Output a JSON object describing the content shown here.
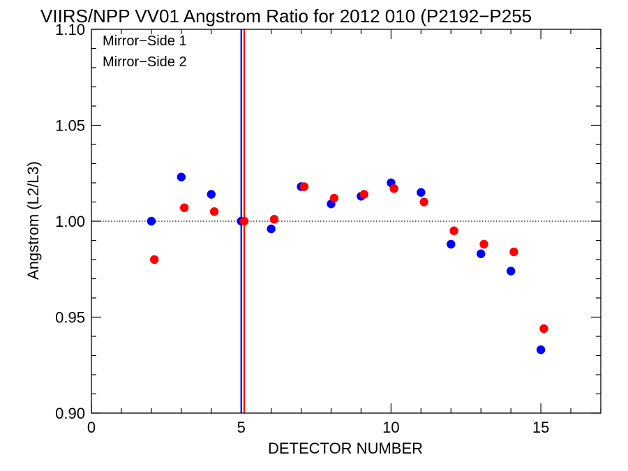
{
  "chart_data": {
    "type": "scatter",
    "title": "VIIRS/NPP VV01 Angstrom Ratio for 2012 010 (P2192−P255",
    "xlabel": "DETECTOR NUMBER",
    "ylabel": "Angstrom (L2/L3)",
    "xlim": [
      0,
      17
    ],
    "ylim": [
      0.9,
      1.1
    ],
    "x_ticks": [
      0,
      5,
      10,
      15
    ],
    "x_tick_labels": [
      "0",
      "5",
      "10",
      "15"
    ],
    "y_ticks": [
      0.9,
      0.95,
      1.0,
      1.05,
      1.1
    ],
    "y_tick_labels": [
      "0.90",
      "0.95",
      "1.00",
      "1.05",
      "1.10"
    ],
    "reference_line": {
      "y": 1.0,
      "style": "dotted"
    },
    "vertical_lines": [
      {
        "x": 5.0,
        "color": "#0000ff"
      },
      {
        "x": 5.1,
        "color": "#ff0000"
      }
    ],
    "legend_position": "top-left",
    "series": [
      {
        "name": "Mirror−Side 1",
        "color": "#0000ff",
        "x": [
          2,
          3,
          4,
          5,
          6,
          7,
          8,
          9,
          10,
          11,
          12,
          13,
          14,
          15
        ],
        "y": [
          1.0,
          1.023,
          1.014,
          1.0,
          0.996,
          1.018,
          1.009,
          1.013,
          1.02,
          1.015,
          0.988,
          0.983,
          0.974,
          0.933
        ]
      },
      {
        "name": "Mirror−Side 2",
        "color": "#ff0000",
        "x": [
          2.1,
          3.1,
          4.1,
          5.1,
          6.1,
          7.1,
          8.1,
          9.1,
          10.1,
          11.1,
          12.1,
          13.1,
          14.1,
          15.1
        ],
        "y": [
          0.98,
          1.007,
          1.005,
          1.0,
          1.001,
          1.018,
          1.012,
          1.014,
          1.017,
          1.01,
          0.995,
          0.988,
          0.984,
          0.944
        ]
      }
    ]
  }
}
